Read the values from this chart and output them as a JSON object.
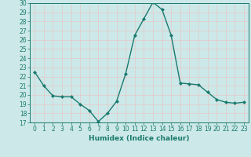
{
  "x": [
    0,
    1,
    2,
    3,
    4,
    5,
    6,
    7,
    8,
    9,
    10,
    11,
    12,
    13,
    14,
    15,
    16,
    17,
    18,
    19,
    20,
    21,
    22,
    23
  ],
  "y": [
    22.5,
    21.0,
    19.9,
    19.8,
    19.8,
    19.0,
    18.3,
    17.1,
    18.0,
    19.3,
    22.3,
    26.5,
    28.3,
    30.1,
    29.3,
    26.5,
    21.3,
    21.2,
    21.1,
    20.3,
    19.5,
    19.2,
    19.1,
    19.2
  ],
  "ylim": [
    17,
    30
  ],
  "xlim": [
    -0.5,
    23.5
  ],
  "yticks": [
    17,
    18,
    19,
    20,
    21,
    22,
    23,
    24,
    25,
    26,
    27,
    28,
    29,
    30
  ],
  "xticks": [
    0,
    1,
    2,
    3,
    4,
    5,
    6,
    7,
    8,
    9,
    10,
    11,
    12,
    13,
    14,
    15,
    16,
    17,
    18,
    19,
    20,
    21,
    22,
    23
  ],
  "xlabel": "Humidex (Indice chaleur)",
  "line_color": "#1a7a6e",
  "marker": "D",
  "marker_size": 2.0,
  "background_color": "#cce8e8",
  "grid_color": "#e8c8c8",
  "tick_color": "#1a7a6e",
  "label_color": "#1a7a6e",
  "tick_fontsize": 5.5,
  "xlabel_fontsize": 6.5,
  "linewidth": 1.0
}
